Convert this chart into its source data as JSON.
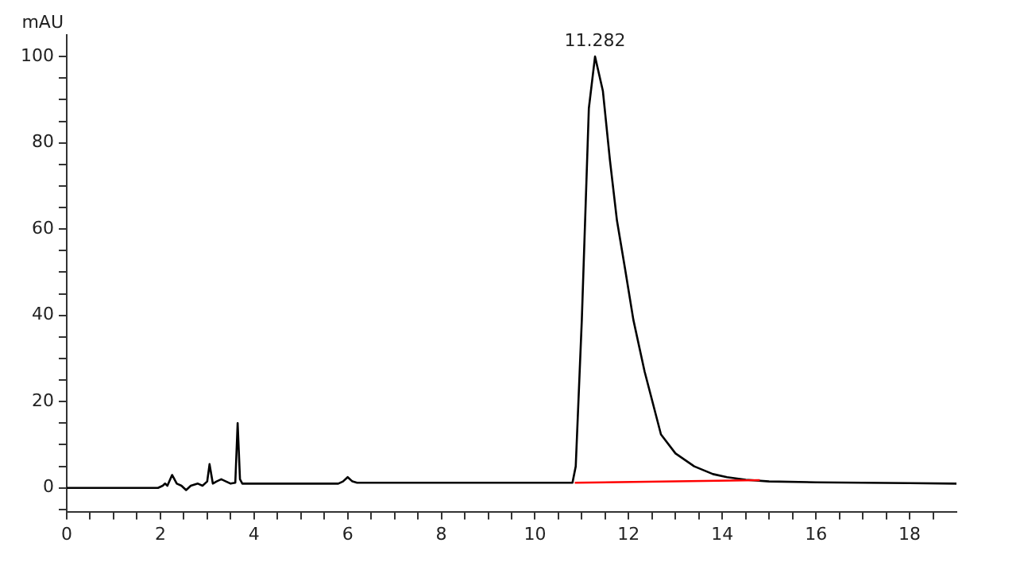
{
  "chart_data": {
    "type": "line",
    "ylabel": "mAU",
    "xlim": [
      0,
      19
    ],
    "ylim": [
      -5.5,
      105
    ],
    "xticks": [
      0,
      {
        "value": 0.5,
        "label": null
      },
      {
        "value": 1,
        "label": null
      },
      {
        "value": 1.5,
        "label": null
      },
      2,
      {
        "value": 2.5,
        "label": null
      },
      {
        "value": 3,
        "label": null
      },
      {
        "value": 3.5,
        "label": null
      },
      4,
      {
        "value": 4.5,
        "label": null
      },
      {
        "value": 5,
        "label": null
      },
      {
        "value": 5.5,
        "label": null
      },
      6,
      {
        "value": 6.5,
        "label": null
      },
      {
        "value": 7,
        "label": null
      },
      {
        "value": 7.5,
        "label": null
      },
      8,
      {
        "value": 8.5,
        "label": null
      },
      {
        "value": 9,
        "label": null
      },
      {
        "value": 9.5,
        "label": null
      },
      10,
      {
        "value": 10.5,
        "label": null
      },
      {
        "value": 11,
        "label": null
      },
      {
        "value": 11.5,
        "label": null
      },
      12,
      {
        "value": 12.5,
        "label": null
      },
      {
        "value": 13,
        "label": null
      },
      {
        "value": 13.5,
        "label": null
      },
      14,
      {
        "value": 14.5,
        "label": null
      },
      {
        "value": 15,
        "label": null
      },
      {
        "value": 15.5,
        "label": null
      },
      16,
      {
        "value": 16.5,
        "label": null
      },
      {
        "value": 17,
        "label": null
      },
      {
        "value": 17.5,
        "label": null
      },
      18,
      {
        "value": 18.5,
        "label": null
      }
    ],
    "yticks": [
      {
        "value": -5,
        "label": null
      },
      0,
      {
        "value": 5,
        "label": null
      },
      {
        "value": 10,
        "label": null
      },
      {
        "value": 15,
        "label": null
      },
      20,
      {
        "value": 25,
        "label": null
      },
      {
        "value": 30,
        "label": null
      },
      {
        "value": 35,
        "label": null
      },
      40,
      {
        "value": 45,
        "label": null
      },
      {
        "value": 50,
        "label": null
      },
      {
        "value": 55,
        "label": null
      },
      60,
      {
        "value": 65,
        "label": null
      },
      {
        "value": 70,
        "label": null
      },
      {
        "value": 75,
        "label": null
      },
      80,
      {
        "value": 85,
        "label": null
      },
      {
        "value": 90,
        "label": null
      },
      {
        "value": 95,
        "label": null
      },
      100
    ],
    "grid": false,
    "legend": false,
    "marker": "none",
    "line_style": "solid",
    "annotations": [
      {
        "text": "11.282",
        "x": 11.282,
        "y": 100
      }
    ],
    "series": [
      {
        "color": "#000000",
        "x": [
          0,
          1.95,
          2.05,
          2.1,
          2.15,
          2.25,
          2.35,
          2.45,
          2.55,
          2.65,
          2.8,
          2.9,
          3.0,
          3.05,
          3.12,
          3.2,
          3.3,
          3.4,
          3.5,
          3.6,
          3.65,
          3.7,
          3.75,
          4.0,
          5.8,
          5.9,
          6.0,
          6.1,
          6.2,
          7,
          9,
          10.5,
          10.8,
          10.87,
          11.0,
          11.15,
          11.282,
          11.45,
          11.6,
          11.75,
          11.92,
          12.1,
          12.34,
          12.69,
          13.0,
          13.4,
          13.8,
          14.1,
          14.5,
          15,
          16,
          17,
          18,
          19
        ],
        "values": [
          0,
          0,
          0.5,
          1,
          0.5,
          3,
          1,
          0.5,
          -0.5,
          0.5,
          1,
          0.5,
          1.5,
          5.5,
          1,
          1.5,
          2,
          1.5,
          1,
          1.2,
          15,
          2,
          1,
          1,
          1,
          1.5,
          2.5,
          1.5,
          1.2,
          1.2,
          1.2,
          1.2,
          1.2,
          5,
          39,
          88,
          100,
          92,
          76,
          62,
          51,
          39,
          27,
          12.4,
          8,
          5,
          3.2,
          2.5,
          1.9,
          1.5,
          1.3,
          1.2,
          1.1,
          1
        ]
      },
      {
        "color": "#ff0000",
        "x": [
          10.85,
          14.8
        ],
        "values": [
          1.2,
          1.8
        ]
      }
    ]
  }
}
